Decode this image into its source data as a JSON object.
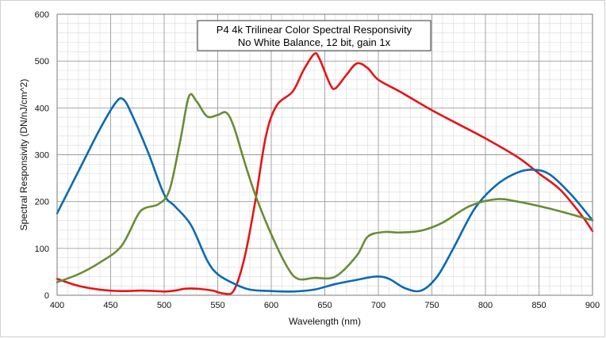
{
  "chart_data": {
    "type": "line",
    "title": "P4 4k Trilinear Color Spectral Responsivity",
    "subtitle": "No White Balance, 12 bit, gain 1x",
    "xlabel": "Wavelength (nm)",
    "ylabel": "Spectral Responsivity (DN/nJ/cm^2)",
    "xlim": [
      400,
      900
    ],
    "ylim": [
      0,
      600
    ],
    "x_ticks": [
      "400",
      "450",
      "500",
      "550",
      "600",
      "650",
      "700",
      "750",
      "800",
      "850",
      "900"
    ],
    "y_ticks": [
      "0",
      "100",
      "200",
      "300",
      "400",
      "500",
      "600"
    ],
    "grid": true,
    "legend": "none",
    "series": [
      {
        "color": "#e81416",
        "points": [
          [
            400,
            35
          ],
          [
            420,
            20
          ],
          [
            440,
            12
          ],
          [
            460,
            9
          ],
          [
            480,
            10
          ],
          [
            500,
            8
          ],
          [
            510,
            10
          ],
          [
            520,
            14
          ],
          [
            530,
            14
          ],
          [
            545,
            10
          ],
          [
            555,
            4
          ],
          [
            565,
            10
          ],
          [
            575,
            80
          ],
          [
            585,
            200
          ],
          [
            595,
            340
          ],
          [
            605,
            405
          ],
          [
            620,
            435
          ],
          [
            630,
            480
          ],
          [
            640,
            515
          ],
          [
            645,
            505
          ],
          [
            655,
            450
          ],
          [
            660,
            442
          ],
          [
            670,
            470
          ],
          [
            680,
            495
          ],
          [
            690,
            485
          ],
          [
            700,
            460
          ],
          [
            720,
            435
          ],
          [
            750,
            395
          ],
          [
            775,
            365
          ],
          [
            800,
            335
          ],
          [
            830,
            295
          ],
          [
            850,
            260
          ],
          [
            870,
            225
          ],
          [
            890,
            170
          ],
          [
            900,
            137
          ]
        ]
      },
      {
        "color": "#0a6ab5",
        "points": [
          [
            400,
            175
          ],
          [
            420,
            265
          ],
          [
            440,
            355
          ],
          [
            455,
            412
          ],
          [
            462,
            418
          ],
          [
            470,
            385
          ],
          [
            485,
            305
          ],
          [
            500,
            215
          ],
          [
            510,
            190
          ],
          [
            525,
            150
          ],
          [
            540,
            75
          ],
          [
            550,
            45
          ],
          [
            565,
            25
          ],
          [
            580,
            12
          ],
          [
            600,
            9
          ],
          [
            620,
            8
          ],
          [
            640,
            12
          ],
          [
            660,
            24
          ],
          [
            680,
            33
          ],
          [
            698,
            40
          ],
          [
            710,
            35
          ],
          [
            725,
            15
          ],
          [
            740,
            10
          ],
          [
            755,
            40
          ],
          [
            770,
            100
          ],
          [
            790,
            185
          ],
          [
            810,
            235
          ],
          [
            830,
            262
          ],
          [
            845,
            268
          ],
          [
            860,
            258
          ],
          [
            880,
            215
          ],
          [
            900,
            160
          ]
        ]
      },
      {
        "color": "#6a8c35",
        "points": [
          [
            400,
            28
          ],
          [
            420,
            45
          ],
          [
            440,
            70
          ],
          [
            460,
            105
          ],
          [
            475,
            170
          ],
          [
            482,
            186
          ],
          [
            495,
            195
          ],
          [
            505,
            225
          ],
          [
            515,
            330
          ],
          [
            523,
            424
          ],
          [
            530,
            415
          ],
          [
            540,
            382
          ],
          [
            550,
            385
          ],
          [
            558,
            390
          ],
          [
            565,
            360
          ],
          [
            575,
            285
          ],
          [
            585,
            215
          ],
          [
            600,
            130
          ],
          [
            615,
            60
          ],
          [
            625,
            35
          ],
          [
            640,
            37
          ],
          [
            660,
            40
          ],
          [
            680,
            85
          ],
          [
            690,
            125
          ],
          [
            705,
            135
          ],
          [
            720,
            134
          ],
          [
            740,
            138
          ],
          [
            760,
            155
          ],
          [
            785,
            190
          ],
          [
            810,
            205
          ],
          [
            830,
            200
          ],
          [
            860,
            185
          ],
          [
            900,
            160
          ]
        ]
      }
    ]
  }
}
